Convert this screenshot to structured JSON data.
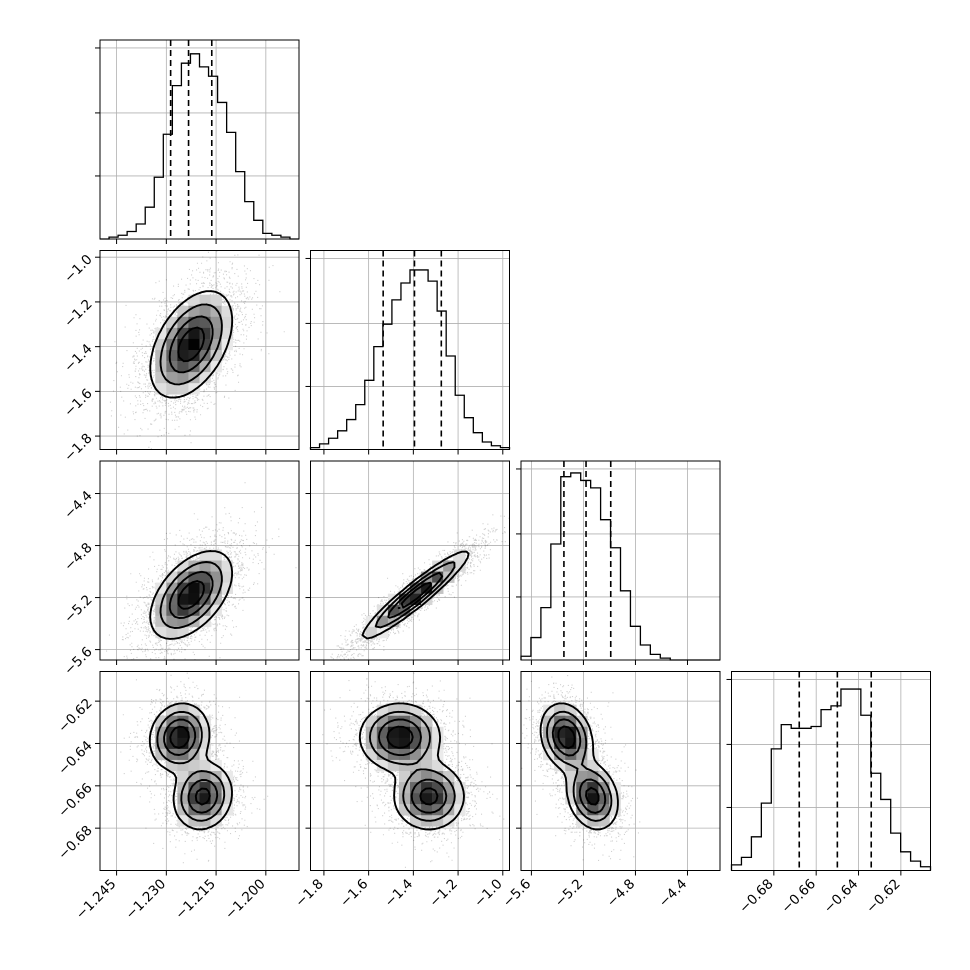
{
  "chart_data": {
    "type": "corner",
    "grid": true,
    "colors": {
      "hist": "#000000",
      "quantile": "#000000",
      "grid": "#b0b0b0",
      "points": "#000000"
    },
    "parameters": [
      {
        "id": "p0",
        "range": [
          -1.25,
          -1.19
        ],
        "ticks": [
          -1.245,
          -1.23,
          -1.215,
          -1.2
        ],
        "tick_labels": [
          "−1.245",
          "−1.230",
          "−1.215",
          "−1.200"
        ],
        "quantiles": [
          -1.2287,
          -1.2233,
          -1.2163
        ]
      },
      {
        "id": "p1",
        "range": [
          -1.86,
          -0.97
        ],
        "ticks": [
          -1.8,
          -1.6,
          -1.4,
          -1.2,
          -1.0
        ],
        "tick_labels": [
          "−1.8",
          "−1.6",
          "−1.4",
          "−1.2",
          "−1.0"
        ],
        "quantiles": [
          -1.535,
          -1.395,
          -1.275
        ]
      },
      {
        "id": "p2",
        "range": [
          -5.68,
          -4.15
        ],
        "ticks": [
          -5.6,
          -5.2,
          -4.8,
          -4.4
        ],
        "tick_labels": [
          "−5.6",
          "−5.2",
          "−4.8",
          "−4.4"
        ],
        "quantiles": [
          -5.35,
          -5.18,
          -4.99
        ]
      },
      {
        "id": "p3",
        "range": [
          -0.7,
          -0.606
        ],
        "ticks": [
          -0.68,
          -0.66,
          -0.64,
          -0.62
        ],
        "tick_labels": [
          "−0.68",
          "−0.66",
          "−0.64",
          "−0.62"
        ],
        "quantiles": [
          -0.668,
          -0.65,
          -0.634
        ]
      }
    ],
    "histograms": [
      {
        "param": "p0",
        "counts": [
          0.0,
          0.01,
          0.02,
          0.04,
          0.08,
          0.17,
          0.33,
          0.56,
          0.82,
          0.94,
          0.99,
          0.92,
          0.87,
          0.73,
          0.57,
          0.36,
          0.2,
          0.1,
          0.03,
          0.02,
          0.01,
          0.0
        ]
      },
      {
        "param": "p1",
        "counts": [
          0.01,
          0.03,
          0.06,
          0.1,
          0.16,
          0.24,
          0.37,
          0.55,
          0.67,
          0.8,
          0.89,
          0.96,
          0.96,
          0.9,
          0.74,
          0.5,
          0.29,
          0.17,
          0.09,
          0.04,
          0.02,
          0.01
        ]
      },
      {
        "param": "p2",
        "counts": [
          0.02,
          0.12,
          0.28,
          0.62,
          0.98,
          1.0,
          0.96,
          0.92,
          0.75,
          0.6,
          0.37,
          0.18,
          0.08,
          0.03,
          0.01,
          0.0,
          0.0,
          0.0,
          0.0,
          0.0
        ]
      },
      {
        "param": "p3",
        "counts": [
          0.03,
          0.07,
          0.18,
          0.36,
          0.65,
          0.78,
          0.76,
          0.76,
          0.77,
          0.86,
          0.88,
          0.97,
          0.97,
          0.83,
          0.52,
          0.38,
          0.2,
          0.1,
          0.05,
          0.02
        ]
      }
    ],
    "joint": [
      {
        "x": "p0",
        "y": "p1",
        "components": [
          {
            "mean": [
              -1.2225,
              -1.39
            ],
            "sd": [
              0.0062,
              0.12
            ],
            "rho": 0.45,
            "w": 1.0
          }
        ]
      },
      {
        "x": "p0",
        "y": "p2",
        "components": [
          {
            "mean": [
              -1.2225,
              -5.18
            ],
            "sd": [
              0.0062,
              0.17
            ],
            "rho": 0.5,
            "w": 1.0
          }
        ]
      },
      {
        "x": "p1",
        "y": "p2",
        "components": [
          {
            "mean": [
              -1.39,
              -5.18
            ],
            "sd": [
              0.12,
              0.17
            ],
            "rho": 0.94,
            "w": 1.0
          }
        ]
      },
      {
        "x": "p0",
        "y": "p3",
        "components": [
          {
            "mean": [
              -1.226,
              -0.637
            ],
            "sd": [
              0.0045,
              0.008
            ],
            "rho": 0.1,
            "w": 0.52
          },
          {
            "mean": [
              -1.219,
              -0.665
            ],
            "sd": [
              0.0045,
              0.008
            ],
            "rho": 0.1,
            "w": 0.48
          }
        ]
      },
      {
        "x": "p1",
        "y": "p3",
        "components": [
          {
            "mean": [
              -1.46,
              -0.637
            ],
            "sd": [
              0.09,
              0.008
            ],
            "rho": 0.0,
            "w": 0.52
          },
          {
            "mean": [
              -1.33,
              -0.665
            ],
            "sd": [
              0.08,
              0.008
            ],
            "rho": 0.0,
            "w": 0.48
          }
        ]
      },
      {
        "x": "p2",
        "y": "p3",
        "components": [
          {
            "mean": [
              -5.33,
              -0.637
            ],
            "sd": [
              0.1,
              0.008
            ],
            "rho": -0.2,
            "w": 0.52
          },
          {
            "mean": [
              -5.13,
              -0.665
            ],
            "sd": [
              0.1,
              0.008
            ],
            "rho": -0.2,
            "w": 0.48
          }
        ]
      }
    ]
  }
}
